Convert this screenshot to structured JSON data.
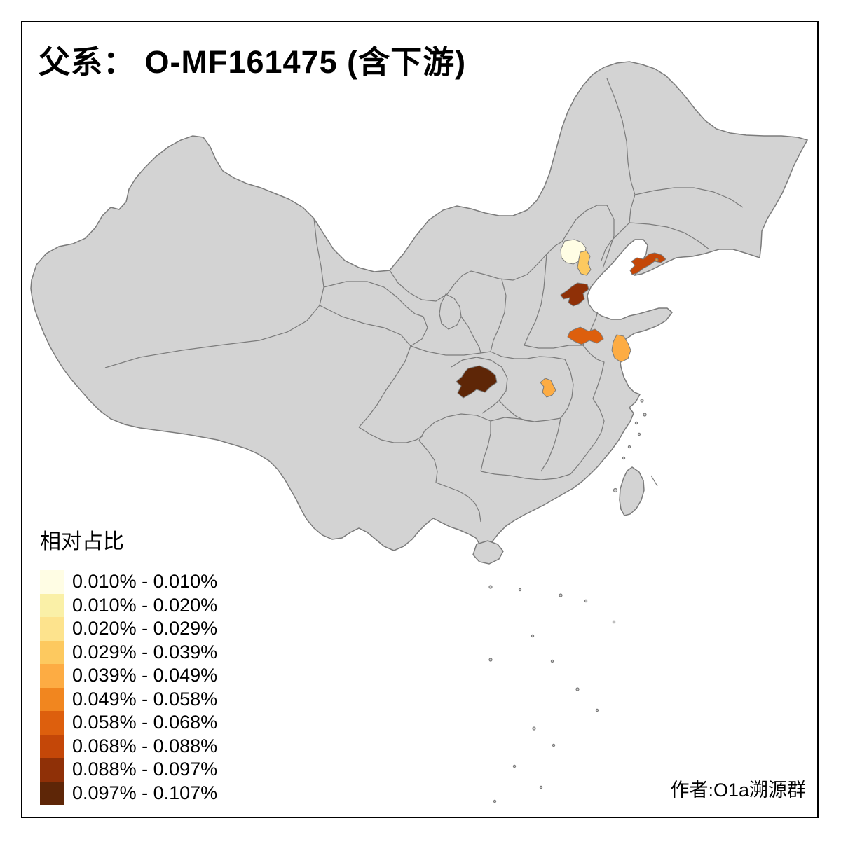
{
  "title": "父系： O-MF161475 (含下游)",
  "attribution": "作者:O1a溯源群",
  "legend": {
    "title": "相对占比",
    "items": [
      {
        "range": "0.010% - 0.010%",
        "color": "#FFFDE4"
      },
      {
        "range": "0.010% - 0.020%",
        "color": "#FAF0A7"
      },
      {
        "range": "0.020% - 0.029%",
        "color": "#FDE38D"
      },
      {
        "range": "0.029% - 0.039%",
        "color": "#FDC95F"
      },
      {
        "range": "0.039% - 0.049%",
        "color": "#FDAC43"
      },
      {
        "range": "0.049% - 0.058%",
        "color": "#F1861F"
      },
      {
        "range": "0.058% - 0.068%",
        "color": "#DD5F0D"
      },
      {
        "range": "0.068% - 0.088%",
        "color": "#C44708"
      },
      {
        "range": "0.088% - 0.097%",
        "color": "#8F3007"
      },
      {
        "range": "0.097% - 0.107%",
        "color": "#5E2607"
      }
    ]
  },
  "map": {
    "base_fill": "#D3D3D3",
    "border_color": "#7B7B7B",
    "sea_color": "#FFFFFF",
    "frame_color": "#000000",
    "regions": [
      {
        "id": "beijing",
        "range": "0.010% - 0.010%",
        "color": "#FFFDE4"
      },
      {
        "id": "tianjin",
        "range": "0.029% - 0.039%",
        "color": "#FDC95F"
      },
      {
        "id": "central-hebei",
        "range": "0.088% - 0.097%",
        "color": "#8F3007"
      },
      {
        "id": "liaodong-peninsula",
        "range": "0.068% - 0.088%",
        "color": "#C44708"
      },
      {
        "id": "southwest-shandong",
        "range": "0.058% - 0.068%",
        "color": "#DD5F0D"
      },
      {
        "id": "northern-jiangsu",
        "range": "0.039% - 0.049%",
        "color": "#FDAC43"
      },
      {
        "id": "central-hubei",
        "range": "0.039% - 0.049%",
        "color": "#FDAC43"
      },
      {
        "id": "chongqing",
        "range": "0.097% - 0.107%",
        "color": "#5E2607"
      },
      {
        "id": "liaodong-islet",
        "color": "#E9992F"
      }
    ]
  }
}
